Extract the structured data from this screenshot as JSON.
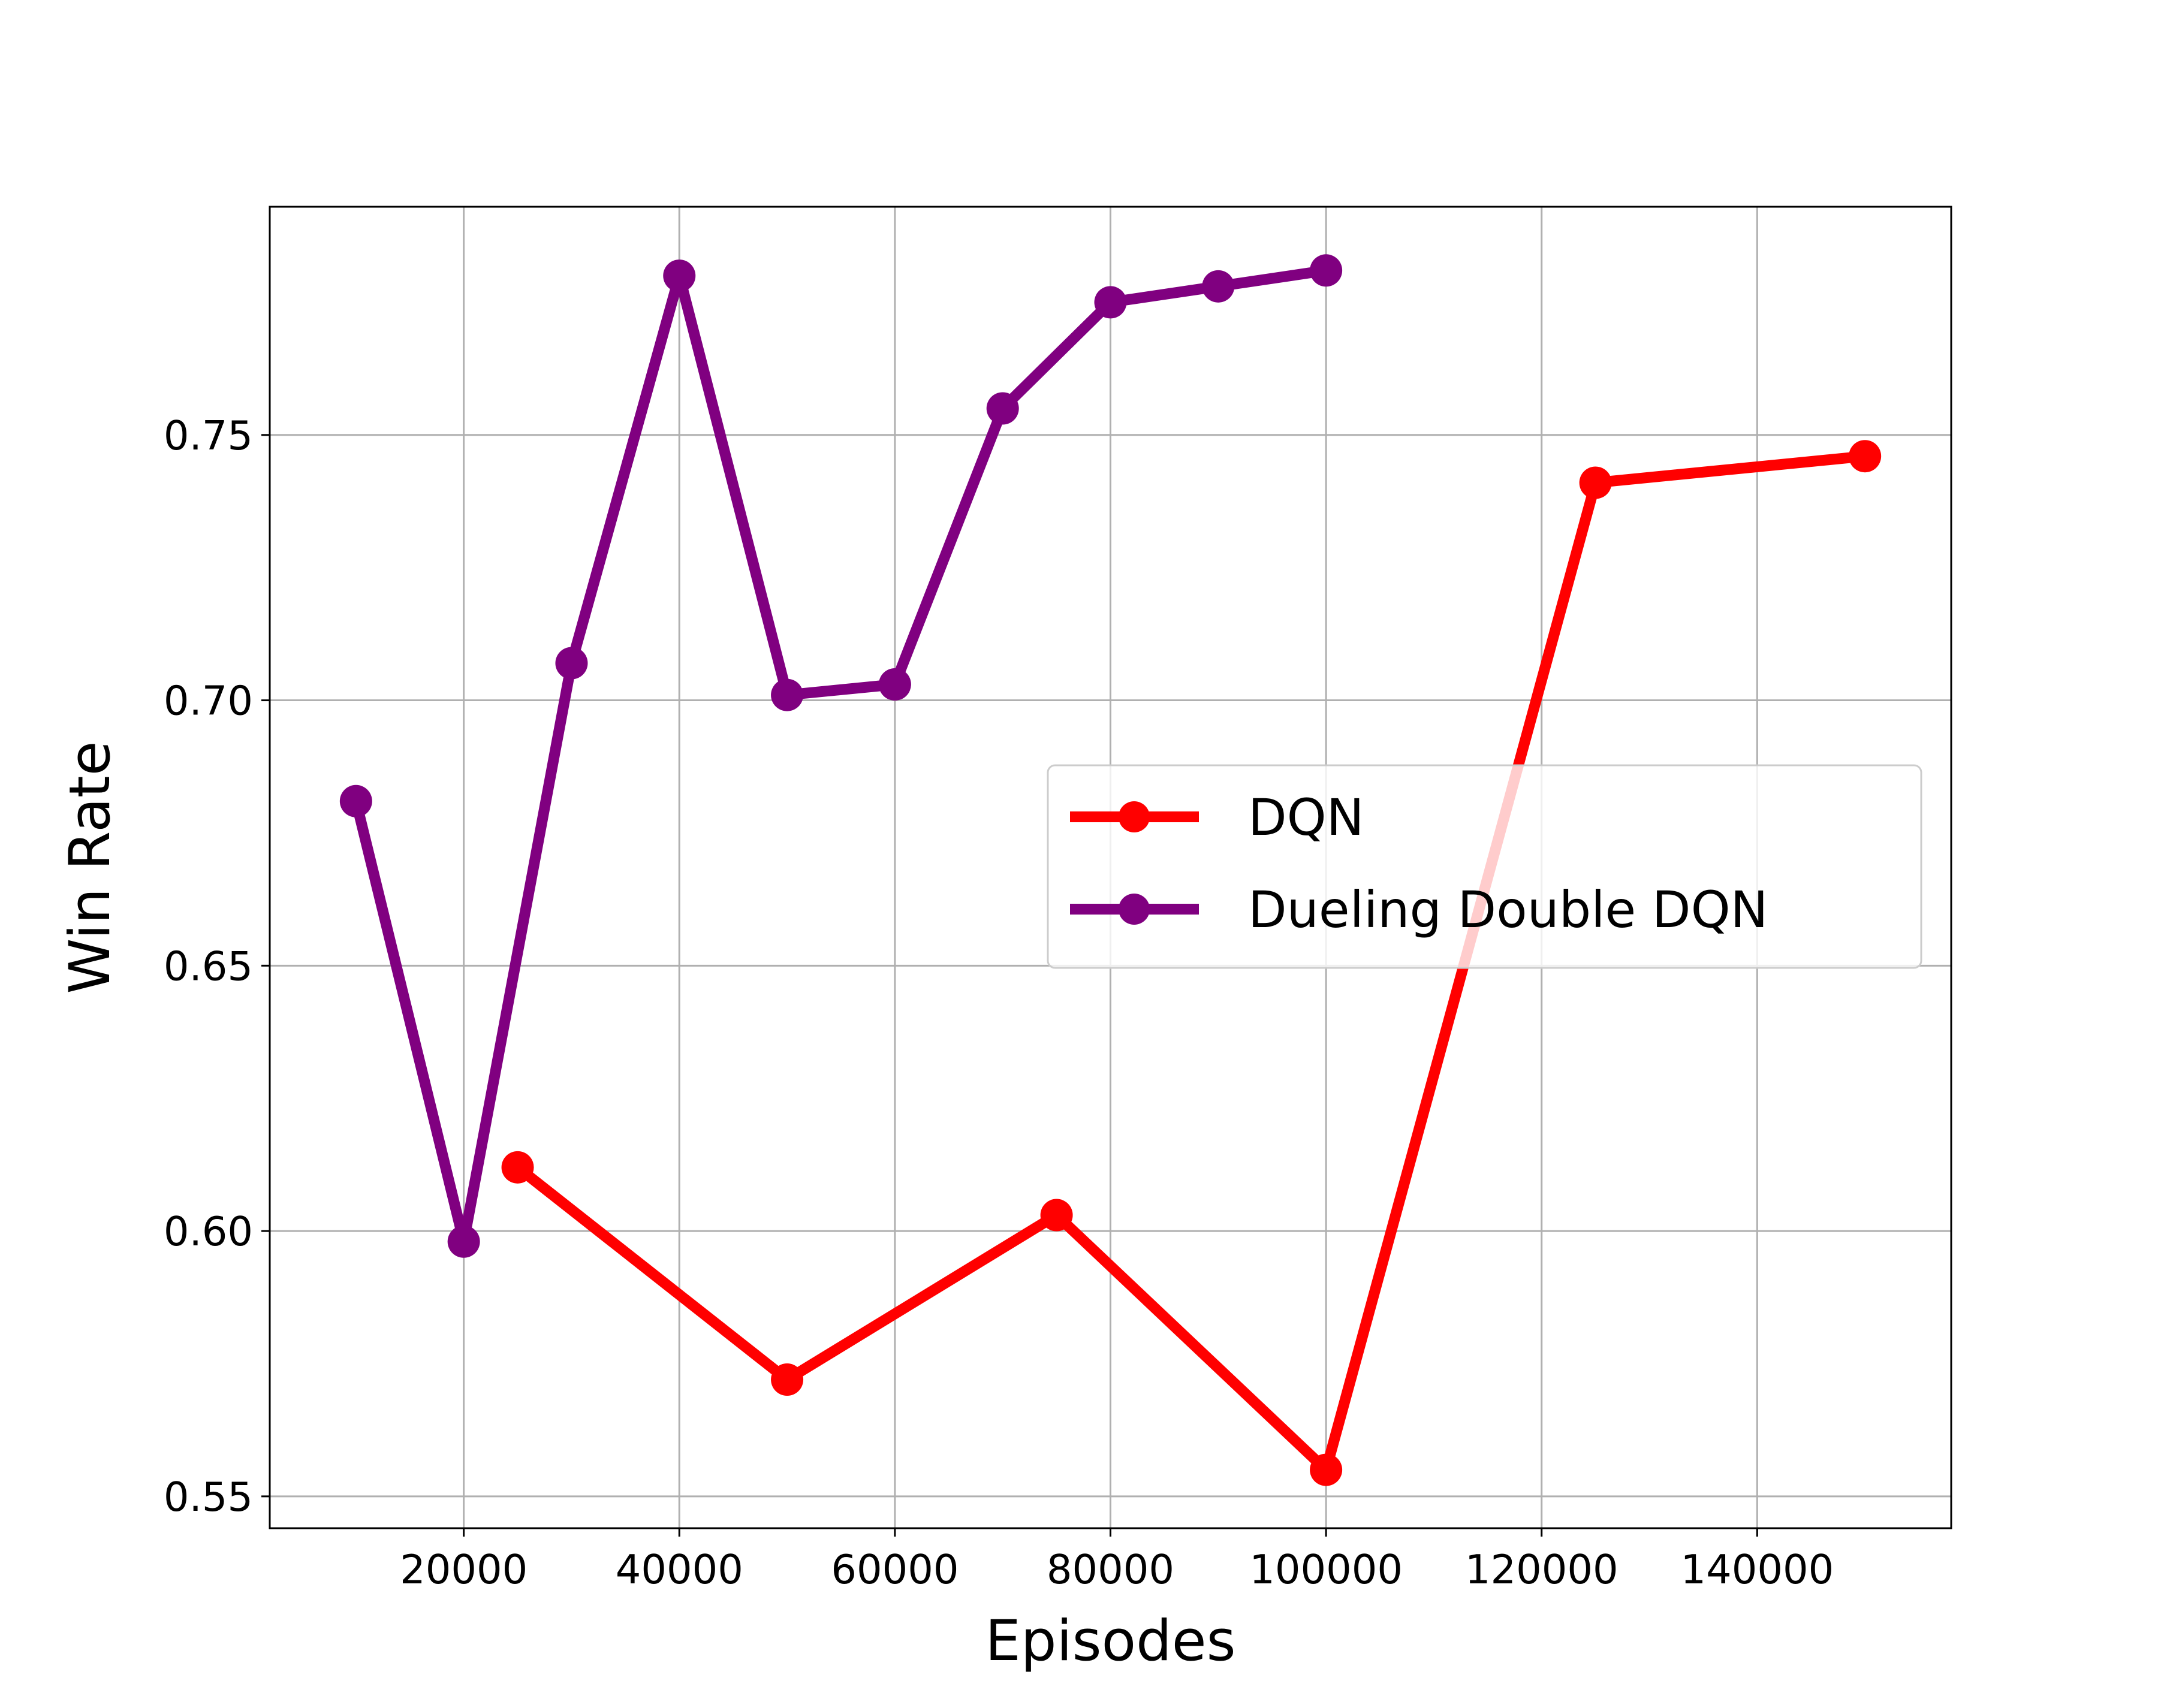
{
  "chart_data": {
    "type": "line",
    "title": "",
    "xlabel": "Episodes",
    "ylabel": "Win Rate",
    "xlim": [
      2000,
      158000
    ],
    "ylim": [
      0.544,
      0.793
    ],
    "xticks": [
      20000,
      40000,
      60000,
      80000,
      100000,
      120000,
      140000
    ],
    "xtick_labels": [
      "20000",
      "40000",
      "60000",
      "80000",
      "100000",
      "120000",
      "140000"
    ],
    "yticks": [
      0.55,
      0.6,
      0.65,
      0.7,
      0.75
    ],
    "ytick_labels": [
      "0.55",
      "0.60",
      "0.65",
      "0.70",
      "0.75"
    ],
    "grid": true,
    "legend_position": "center-right",
    "series": [
      {
        "name": "DQN",
        "color": "#ff0000",
        "marker": "circle",
        "x": [
          25000,
          50000,
          75000,
          100000,
          125000,
          150000
        ],
        "y": [
          0.612,
          0.572,
          0.603,
          0.555,
          0.741,
          0.746
        ]
      },
      {
        "name": "Dueling Double DQN",
        "color": "#800080",
        "marker": "circle",
        "x": [
          10000,
          20000,
          30000,
          40000,
          50000,
          60000,
          70000,
          80000,
          90000,
          100000
        ],
        "y": [
          0.681,
          0.598,
          0.707,
          0.78,
          0.701,
          0.703,
          0.755,
          0.775,
          0.778,
          0.781
        ]
      }
    ]
  }
}
